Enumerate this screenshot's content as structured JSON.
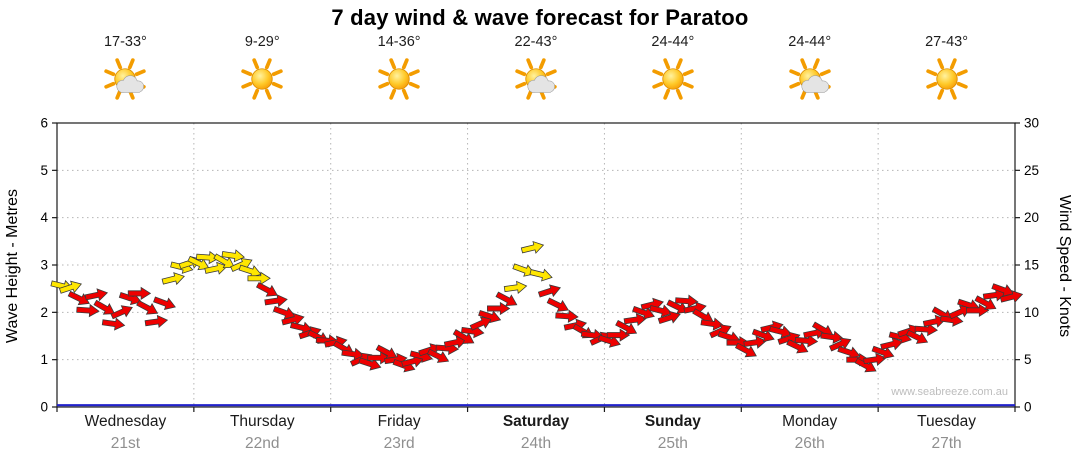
{
  "title": "7 day wind & wave forecast for Paratoo",
  "watermark": "www.seabreeze.com.au",
  "days": [
    {
      "name": "Wednesday",
      "date": "21st",
      "temp": "17-33°",
      "icon": "partly-cloudy",
      "weekend": false
    },
    {
      "name": "Thursday",
      "date": "22nd",
      "temp": "9-29°",
      "icon": "sunny",
      "weekend": false
    },
    {
      "name": "Friday",
      "date": "23rd",
      "temp": "14-36°",
      "icon": "sunny",
      "weekend": false
    },
    {
      "name": "Saturday",
      "date": "24th",
      "temp": "22-43°",
      "icon": "partly-cloudy",
      "weekend": true
    },
    {
      "name": "Sunday",
      "date": "25th",
      "temp": "24-44°",
      "icon": "sunny",
      "weekend": true
    },
    {
      "name": "Monday",
      "date": "26th",
      "temp": "24-44°",
      "icon": "partly-cloudy",
      "weekend": false
    },
    {
      "name": "Tuesday",
      "date": "27th",
      "temp": "27-43°",
      "icon": "sunny",
      "weekend": false
    }
  ],
  "chart_data": {
    "type": "scatter",
    "title": "7 day wind & wave forecast for Paratoo",
    "left_axis": {
      "label": "Wave Height - Metres",
      "min": 0,
      "max": 6,
      "ticks": [
        0,
        1,
        2,
        3,
        4,
        5,
        6
      ]
    },
    "right_axis": {
      "label": "Wind Speed - Knots",
      "min": 0,
      "max": 30,
      "ticks": [
        0,
        5,
        10,
        15,
        20,
        25,
        30
      ]
    },
    "x_axis": {
      "unit": "days",
      "count": 7
    },
    "wind_series": {
      "name": "Wind speed (knots), arrow markers show wind direction",
      "units": "knots",
      "points_per_day": 16,
      "color_rule": {
        "yellow_min_knots": 12.5,
        "yellow": "#ffe600",
        "red": "#ee0000"
      },
      "knots": [
        12.8,
        12.6,
        11.5,
        10.2,
        11.8,
        10.5,
        8.8,
        10.0,
        11.5,
        12.0,
        10.5,
        9.0,
        11.0,
        13.5,
        14.8,
        15.2,
        15.2,
        15.8,
        14.6,
        15.4,
        16.0,
        15.0,
        14.4,
        13.6,
        12.4,
        11.2,
        10.0,
        9.2,
        8.4,
        7.8,
        7.4,
        7.0,
        6.8,
        6.2,
        5.6,
        5.0,
        4.6,
        5.2,
        5.8,
        5.0,
        4.4,
        4.8,
        5.4,
        6.0,
        5.4,
        6.2,
        6.8,
        7.4,
        8.0,
        8.8,
        9.6,
        10.4,
        11.4,
        12.6,
        14.5,
        16.8,
        14.0,
        12.2,
        10.8,
        9.6,
        8.6,
        8.0,
        7.6,
        7.2,
        7.0,
        7.6,
        8.4,
        9.2,
        10.0,
        10.8,
        10.2,
        9.4,
        10.6,
        11.2,
        10.4,
        9.6,
        8.8,
        8.0,
        7.4,
        6.8,
        6.0,
        6.8,
        7.6,
        8.4,
        8.0,
        7.2,
        6.4,
        7.0,
        7.8,
        8.2,
        7.4,
        6.6,
        5.8,
        5.0,
        4.4,
        5.0,
        5.8,
        6.6,
        7.4,
        8.0,
        7.4,
        8.2,
        9.0,
        9.8,
        9.2,
        10.0,
        10.8,
        10.2,
        11.0,
        11.8,
        12.4,
        11.6
      ],
      "dir_pattern_deg": [
        14,
        -18,
        26,
        4,
        -12,
        30,
        8,
        -24,
        18,
        0,
        28,
        -8,
        20,
        -14
      ]
    },
    "wave_series": {
      "name": "Wave height",
      "units": "metres",
      "constant_value": 0,
      "color": "#2222cc"
    },
    "grid": {
      "horizontal": true,
      "vertical_day_lines": true,
      "style": "dotted"
    }
  }
}
